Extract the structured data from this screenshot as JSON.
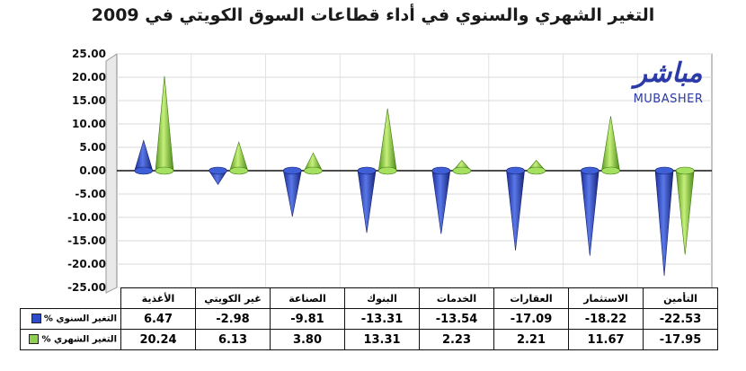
{
  "chart_data": {
    "type": "bar",
    "title": "التغير الشهري والسنوي في أداء قطاعات السوق الكويتي في 2009",
    "categories": [
      "الأغذية",
      "غير الكويتي",
      "الصناعة",
      "البنوك",
      "الخدمات",
      "العقارات",
      "الاستثمار",
      "التأمين"
    ],
    "series": [
      {
        "name": "التغير السنوي %",
        "color": "#2f4bc8",
        "values": [
          6.47,
          -2.98,
          -9.81,
          -13.31,
          -13.54,
          -17.09,
          -18.22,
          -22.53
        ]
      },
      {
        "name": "التغير الشهري %",
        "color": "#8fd14f",
        "values": [
          20.24,
          6.13,
          3.8,
          13.31,
          2.23,
          2.21,
          11.67,
          -17.95
        ]
      }
    ],
    "ylim": [
      -25,
      25
    ],
    "yticks": [
      "25.00",
      "20.00",
      "15.00",
      "10.00",
      "5.00",
      "0.00",
      "-5.00",
      "-10.00",
      "-15.00",
      "-20.00",
      "-25.00"
    ],
    "ytick_values": [
      25,
      20,
      15,
      10,
      5,
      0,
      -5,
      -10,
      -15,
      -20,
      -25
    ],
    "table_values": [
      [
        "6.47",
        "-2.98",
        "-9.81",
        "-13.31",
        "-13.54",
        "-17.09",
        "-18.22",
        "-22.53"
      ],
      [
        "20.24",
        "6.13",
        "3.80",
        "13.31",
        "2.23",
        "2.21",
        "11.67",
        "-17.95"
      ]
    ],
    "grid": true,
    "legend": "table-left"
  },
  "logo": {
    "arabic": "مباشر",
    "english": "MUBASHER"
  }
}
